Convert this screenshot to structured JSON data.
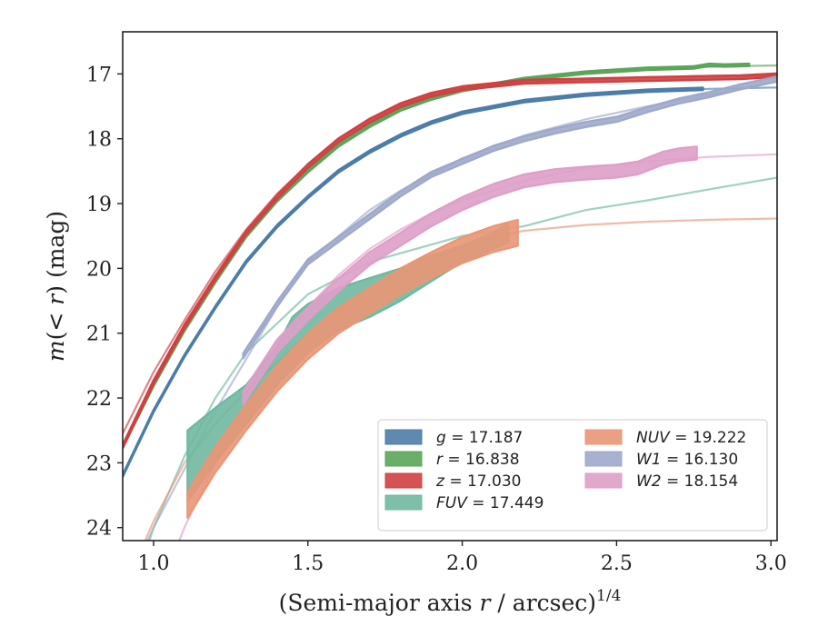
{
  "chart_data": {
    "type": "line",
    "title": "",
    "xlabel": "(Semi-major axis r / arcsec)^1/4",
    "xlabel_parts": {
      "pre": "(Semi-major axis ",
      "var": "r",
      "post": " / arcsec)",
      "exp": "1/4"
    },
    "ylabel": "m(< r) (mag)",
    "ylabel_parts": {
      "pre": "m",
      "open": "(< ",
      "var": "r",
      "close": ") (mag)"
    },
    "xlim": [
      0.9,
      3.02
    ],
    "ylim": [
      24.2,
      16.35
    ],
    "y_inverted": true,
    "xticks": [
      1.0,
      1.5,
      2.0,
      2.5,
      3.0
    ],
    "xtick_labels": [
      "1.0",
      "1.5",
      "2.0",
      "2.5",
      "3.0"
    ],
    "yticks": [
      17,
      18,
      19,
      20,
      21,
      22,
      23,
      24
    ],
    "ytick_labels": [
      "17",
      "18",
      "19",
      "20",
      "21",
      "22",
      "23",
      "24"
    ],
    "grid": false,
    "legend_position": "lower-right",
    "legend_columns": 2,
    "series": [
      {
        "name": "g",
        "value_label": "17.187",
        "color": "#4c7ca8",
        "model": [
          [
            0.9,
            23.2
          ],
          [
            1.0,
            22.2
          ],
          [
            1.1,
            21.35
          ],
          [
            1.2,
            20.6
          ],
          [
            1.3,
            19.9
          ],
          [
            1.4,
            19.35
          ],
          [
            1.5,
            18.9
          ],
          [
            1.6,
            18.5
          ],
          [
            1.7,
            18.2
          ],
          [
            1.8,
            17.95
          ],
          [
            1.9,
            17.75
          ],
          [
            2.0,
            17.6
          ],
          [
            2.2,
            17.42
          ],
          [
            2.4,
            17.32
          ],
          [
            2.6,
            17.26
          ],
          [
            2.8,
            17.23
          ],
          [
            3.0,
            17.21
          ],
          [
            3.02,
            17.21
          ]
        ],
        "band_center": [
          [
            0.9,
            23.2
          ],
          [
            1.0,
            22.2
          ],
          [
            1.1,
            21.35
          ],
          [
            1.2,
            20.6
          ],
          [
            1.3,
            19.9
          ],
          [
            1.4,
            19.35
          ],
          [
            1.5,
            18.9
          ],
          [
            1.6,
            18.5
          ],
          [
            1.7,
            18.2
          ],
          [
            1.8,
            17.95
          ],
          [
            1.9,
            17.75
          ],
          [
            2.0,
            17.6
          ],
          [
            2.2,
            17.42
          ],
          [
            2.4,
            17.32
          ],
          [
            2.6,
            17.26
          ],
          [
            2.78,
            17.23
          ]
        ],
        "band_halfwidth": 0.02
      },
      {
        "name": "r",
        "value_label": "16.838",
        "color": "#5aa55a",
        "model": [
          [
            0.9,
            22.75
          ],
          [
            1.0,
            21.8
          ],
          [
            1.1,
            20.95
          ],
          [
            1.2,
            20.2
          ],
          [
            1.3,
            19.5
          ],
          [
            1.4,
            18.95
          ],
          [
            1.5,
            18.5
          ],
          [
            1.6,
            18.1
          ],
          [
            1.7,
            17.8
          ],
          [
            1.8,
            17.55
          ],
          [
            1.9,
            17.38
          ],
          [
            2.0,
            17.25
          ],
          [
            2.2,
            17.08
          ],
          [
            2.4,
            16.98
          ],
          [
            2.6,
            16.92
          ],
          [
            2.8,
            16.89
          ],
          [
            3.0,
            16.87
          ],
          [
            3.02,
            16.87
          ]
        ],
        "band_center": [
          [
            0.9,
            22.75
          ],
          [
            1.0,
            21.8
          ],
          [
            1.1,
            20.95
          ],
          [
            1.2,
            20.2
          ],
          [
            1.3,
            19.5
          ],
          [
            1.4,
            18.95
          ],
          [
            1.5,
            18.5
          ],
          [
            1.6,
            18.1
          ],
          [
            1.7,
            17.8
          ],
          [
            1.8,
            17.55
          ],
          [
            1.9,
            17.38
          ],
          [
            2.0,
            17.25
          ],
          [
            2.2,
            17.08
          ],
          [
            2.4,
            16.98
          ],
          [
            2.6,
            16.92
          ],
          [
            2.75,
            16.9
          ],
          [
            2.8,
            16.86
          ],
          [
            2.85,
            16.87
          ],
          [
            2.93,
            16.86
          ]
        ],
        "band_halfwidth": 0.02
      },
      {
        "name": "z",
        "value_label": "17.030",
        "color": "#d04040",
        "model": [
          [
            0.9,
            22.55
          ],
          [
            1.0,
            21.6
          ],
          [
            1.1,
            20.8
          ],
          [
            1.2,
            20.05
          ],
          [
            1.3,
            19.4
          ],
          [
            1.4,
            18.85
          ],
          [
            1.5,
            18.4
          ],
          [
            1.6,
            18.0
          ],
          [
            1.7,
            17.7
          ],
          [
            1.8,
            17.47
          ],
          [
            1.9,
            17.32
          ],
          [
            2.0,
            17.22
          ],
          [
            2.2,
            17.12
          ],
          [
            2.4,
            17.08
          ],
          [
            2.6,
            17.05
          ],
          [
            2.8,
            17.03
          ],
          [
            3.0,
            17.02
          ],
          [
            3.02,
            17.02
          ]
        ],
        "band_center": [
          [
            0.9,
            22.75
          ],
          [
            1.0,
            21.75
          ],
          [
            1.1,
            20.9
          ],
          [
            1.2,
            20.15
          ],
          [
            1.3,
            19.45
          ],
          [
            1.4,
            18.9
          ],
          [
            1.5,
            18.42
          ],
          [
            1.6,
            18.02
          ],
          [
            1.7,
            17.72
          ],
          [
            1.8,
            17.48
          ],
          [
            1.9,
            17.32
          ],
          [
            2.0,
            17.22
          ],
          [
            2.2,
            17.12
          ],
          [
            2.4,
            17.1
          ],
          [
            2.5,
            17.09
          ],
          [
            2.6,
            17.08
          ],
          [
            2.7,
            17.07
          ],
          [
            2.8,
            17.06
          ],
          [
            2.9,
            17.05
          ],
          [
            3.02,
            17.02
          ]
        ],
        "band_halfwidth": 0.03
      },
      {
        "name": "FUV",
        "value_label": "17.449",
        "color": "#6fb8a0",
        "model": [
          [
            0.9,
            25.5
          ],
          [
            1.0,
            24.0
          ],
          [
            1.1,
            22.9
          ],
          [
            1.2,
            22.0
          ],
          [
            1.3,
            21.3
          ],
          [
            1.5,
            20.4
          ],
          [
            1.7,
            19.9
          ],
          [
            2.0,
            19.5
          ],
          [
            2.2,
            19.35
          ],
          [
            2.4,
            19.1
          ],
          [
            2.6,
            18.95
          ],
          [
            2.8,
            18.78
          ],
          [
            3.02,
            18.6
          ]
        ],
        "band_upper": [
          [
            1.11,
            22.5
          ],
          [
            1.2,
            22.15
          ],
          [
            1.3,
            21.8
          ],
          [
            1.4,
            21.2
          ],
          [
            1.45,
            20.75
          ],
          [
            1.5,
            20.55
          ],
          [
            1.6,
            20.3
          ],
          [
            1.7,
            20.15
          ],
          [
            1.8,
            20.0
          ],
          [
            1.9,
            19.8
          ],
          [
            2.0,
            19.65
          ],
          [
            2.1,
            19.45
          ],
          [
            2.15,
            19.3
          ]
        ],
        "band_lower": [
          [
            1.11,
            23.6
          ],
          [
            1.2,
            23.0
          ],
          [
            1.3,
            22.4
          ],
          [
            1.4,
            21.8
          ],
          [
            1.5,
            21.3
          ],
          [
            1.6,
            20.95
          ],
          [
            1.7,
            20.75
          ],
          [
            1.8,
            20.5
          ],
          [
            1.9,
            20.2
          ],
          [
            2.0,
            19.9
          ],
          [
            2.1,
            19.7
          ],
          [
            2.15,
            19.6
          ]
        ]
      },
      {
        "name": "NUV",
        "value_label": "19.222",
        "color": "#ea9675",
        "model": [
          [
            0.9,
            25.0
          ],
          [
            1.0,
            23.9
          ],
          [
            1.1,
            23.0
          ],
          [
            1.2,
            22.4
          ],
          [
            1.3,
            21.9
          ],
          [
            1.5,
            21.0
          ],
          [
            1.7,
            20.3
          ],
          [
            1.9,
            19.85
          ],
          [
            2.1,
            19.52
          ],
          [
            2.2,
            19.42
          ],
          [
            2.4,
            19.33
          ],
          [
            2.6,
            19.28
          ],
          [
            2.8,
            19.25
          ],
          [
            3.02,
            19.23
          ]
        ],
        "band_center": [
          [
            1.11,
            23.65
          ],
          [
            1.2,
            22.95
          ],
          [
            1.3,
            22.3
          ],
          [
            1.4,
            21.7
          ],
          [
            1.5,
            21.2
          ],
          [
            1.6,
            20.8
          ],
          [
            1.7,
            20.5
          ],
          [
            1.8,
            20.2
          ],
          [
            1.9,
            19.95
          ],
          [
            2.0,
            19.72
          ],
          [
            2.1,
            19.55
          ],
          [
            2.18,
            19.45
          ]
        ],
        "band_halfwidth": 0.2
      },
      {
        "name": "W1",
        "value_label": "16.130",
        "color": "#9ea8ca",
        "model": [
          [
            0.9,
            25.0
          ],
          [
            1.0,
            24.0
          ],
          [
            1.1,
            23.1
          ],
          [
            1.2,
            22.2
          ],
          [
            1.3,
            21.4
          ],
          [
            1.4,
            20.6
          ],
          [
            1.5,
            19.9
          ],
          [
            1.6,
            19.5
          ],
          [
            1.7,
            19.1
          ],
          [
            1.8,
            18.8
          ],
          [
            1.9,
            18.55
          ],
          [
            2.0,
            18.3
          ],
          [
            2.2,
            17.95
          ],
          [
            2.4,
            17.7
          ],
          [
            2.6,
            17.5
          ],
          [
            2.8,
            17.32
          ],
          [
            3.02,
            17.12
          ]
        ],
        "band_center": [
          [
            1.29,
            21.35
          ],
          [
            1.4,
            20.55
          ],
          [
            1.5,
            19.9
          ],
          [
            1.6,
            19.55
          ],
          [
            1.7,
            19.2
          ],
          [
            1.8,
            18.85
          ],
          [
            1.9,
            18.55
          ],
          [
            2.0,
            18.35
          ],
          [
            2.1,
            18.15
          ],
          [
            2.2,
            18.0
          ],
          [
            2.3,
            17.88
          ],
          [
            2.4,
            17.78
          ],
          [
            2.5,
            17.7
          ],
          [
            2.6,
            17.55
          ],
          [
            2.7,
            17.42
          ],
          [
            2.8,
            17.32
          ],
          [
            2.9,
            17.2
          ],
          [
            3.02,
            17.08
          ]
        ],
        "band_halfwidth": 0.04
      },
      {
        "name": "W2",
        "value_label": "18.154",
        "color": "#de9ec8",
        "model": [
          [
            0.9,
            26.0
          ],
          [
            1.0,
            25.2
          ],
          [
            1.1,
            24.0
          ],
          [
            1.2,
            23.0
          ],
          [
            1.3,
            22.1
          ],
          [
            1.4,
            21.3
          ],
          [
            1.5,
            20.6
          ],
          [
            1.6,
            20.1
          ],
          [
            1.7,
            19.7
          ],
          [
            1.8,
            19.4
          ],
          [
            1.9,
            19.15
          ],
          [
            2.0,
            18.95
          ],
          [
            2.2,
            18.65
          ],
          [
            2.4,
            18.45
          ],
          [
            2.6,
            18.35
          ],
          [
            2.8,
            18.28
          ],
          [
            3.02,
            18.24
          ]
        ],
        "band_center": [
          [
            1.29,
            22.0
          ],
          [
            1.4,
            21.2
          ],
          [
            1.5,
            20.7
          ],
          [
            1.6,
            20.25
          ],
          [
            1.7,
            19.85
          ],
          [
            1.8,
            19.55
          ],
          [
            1.9,
            19.25
          ],
          [
            2.0,
            19.0
          ],
          [
            2.1,
            18.8
          ],
          [
            2.2,
            18.65
          ],
          [
            2.3,
            18.57
          ],
          [
            2.4,
            18.53
          ],
          [
            2.5,
            18.5
          ],
          [
            2.57,
            18.45
          ],
          [
            2.65,
            18.3
          ],
          [
            2.7,
            18.25
          ],
          [
            2.76,
            18.22
          ]
        ],
        "band_halfwidth": 0.1
      }
    ],
    "legend_order": [
      0,
      4,
      1,
      5,
      2,
      6,
      3
    ]
  }
}
